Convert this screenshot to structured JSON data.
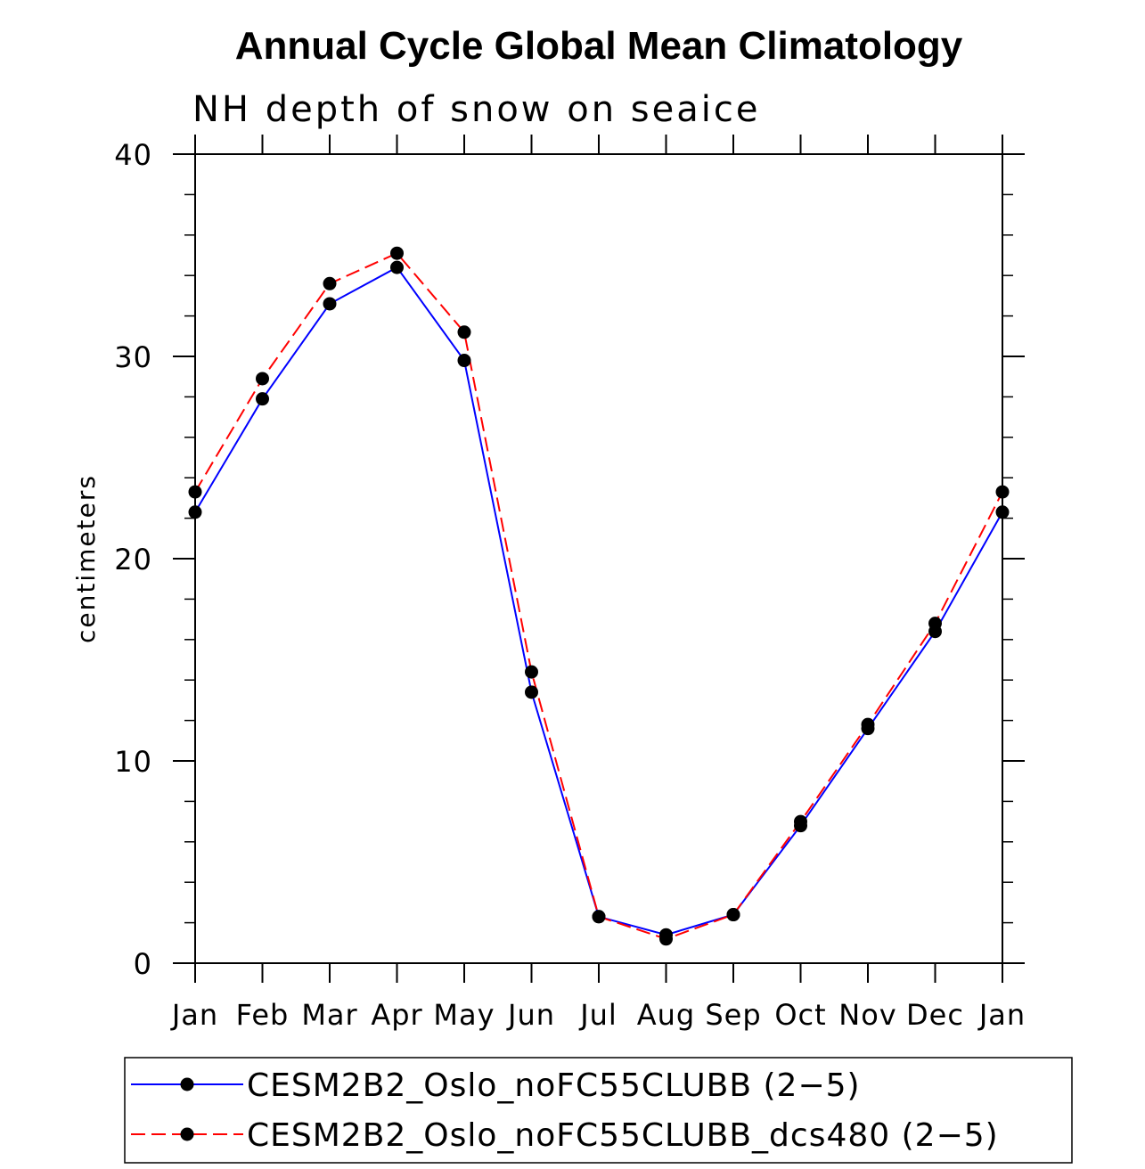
{
  "chart_data": {
    "type": "line",
    "title": "Annual Cycle Global Mean Climatology",
    "subtitle": "NH depth of snow on seaice",
    "xlabel": "",
    "ylabel": "centimeters",
    "ylim": [
      0,
      40
    ],
    "yticks": [
      0,
      10,
      20,
      30,
      40
    ],
    "categories": [
      "Jan",
      "Feb",
      "Mar",
      "Apr",
      "May",
      "Jun",
      "Jul",
      "Aug",
      "Sep",
      "Oct",
      "Nov",
      "Dec",
      "Jan"
    ],
    "series": [
      {
        "name": "CESM2B2_Oslo_noFC55CLUBB (2−5)",
        "color": "#0000ff",
        "dash": "solid",
        "values": [
          22.3,
          27.9,
          32.6,
          34.4,
          29.8,
          13.4,
          2.3,
          1.4,
          2.4,
          6.8,
          11.6,
          16.4,
          22.3
        ]
      },
      {
        "name": "CESM2B2_Oslo_noFC55CLUBB_dcs480 (2−5)",
        "color": "#ff0000",
        "dash": "dashed",
        "values": [
          23.3,
          28.9,
          33.6,
          35.1,
          31.2,
          14.4,
          2.3,
          1.2,
          2.4,
          7.0,
          11.8,
          16.8,
          23.3
        ]
      }
    ],
    "legend_position": "bottom"
  }
}
